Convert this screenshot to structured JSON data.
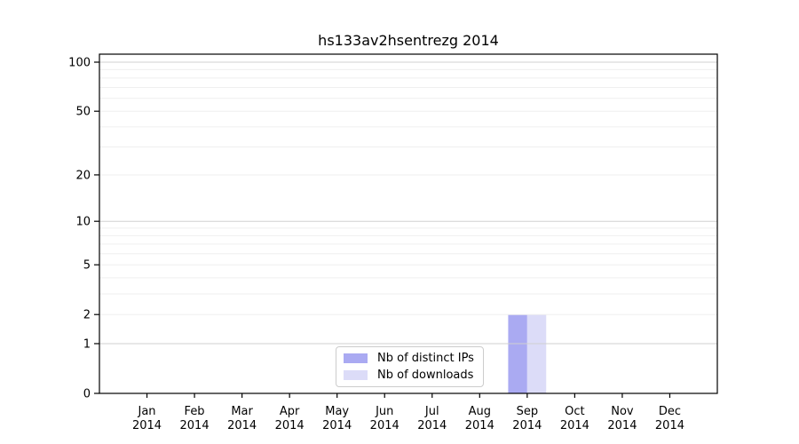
{
  "title": "hs133av2hsentrezg 2014",
  "chart_data": {
    "type": "bar",
    "title": "hs133av2hsentrezg 2014",
    "categories": [
      "Jan",
      "Feb",
      "Mar",
      "Apr",
      "May",
      "Jun",
      "Jul",
      "Aug",
      "Sep",
      "Oct",
      "Nov",
      "Dec"
    ],
    "x_year": "2014",
    "series": [
      {
        "name": "Nb of distinct IPs",
        "color": "#aaaaf2",
        "values": [
          0,
          0,
          0,
          0,
          0,
          0,
          0,
          0,
          2,
          0,
          0,
          0
        ]
      },
      {
        "name": "Nb of downloads",
        "color": "#dcdcf8",
        "values": [
          0,
          0,
          0,
          0,
          0,
          0,
          0,
          0,
          2,
          0,
          0,
          0
        ]
      }
    ],
    "yscale": "log1p",
    "ylim": [
      0,
      112
    ],
    "y_ticks": [
      100,
      50,
      20,
      10,
      5,
      2,
      1,
      0
    ],
    "y_major_gridlines": [
      100,
      10,
      1
    ],
    "y_minor_gridlines": [
      2,
      3,
      4,
      5,
      6,
      7,
      8,
      9,
      20,
      30,
      40,
      50,
      60,
      70,
      80,
      90
    ],
    "grid": true,
    "legend_position": "lower center"
  },
  "colors": {
    "spine": "#000000",
    "major_grid": "#d0d0d0",
    "minor_grid": "#efefef",
    "text": "#000000",
    "background": "#ffffff",
    "bar_distinct_ips": "#aaaaf2",
    "bar_downloads": "#dcdcf8"
  }
}
